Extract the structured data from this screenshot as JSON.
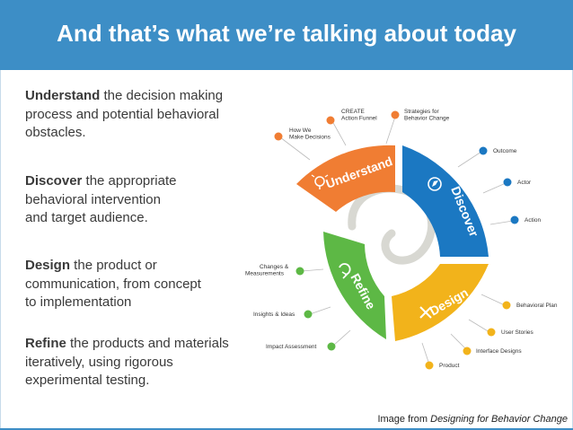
{
  "title": "And that’s what we’re talking about today",
  "steps": [
    {
      "term": "Understand",
      "line1": " the decision making",
      "line2": "process  and potential behavioral",
      "line3": "obstacles."
    },
    {
      "term": "Discover",
      "line1": " the appropriate",
      "line2": "behavioral intervention",
      "line3": "and target audience."
    },
    {
      "term": "Design",
      "line1": " the product or",
      "line2": "communication, from concept",
      "line3": "to implementation"
    },
    {
      "term": "Refine",
      "line1": " the products and materials",
      "line2": "iteratively, using rigorous",
      "line3": "experimental testing."
    }
  ],
  "caption": {
    "prefix": "Image from ",
    "source": "Designing for Behavior Change"
  },
  "diagram": {
    "segments": [
      {
        "label": "Understand",
        "color": "#f07d33",
        "icon": "lightbulb-icon"
      },
      {
        "label": "Discover",
        "color": "#1b78c2",
        "icon": "compass-icon"
      },
      {
        "label": "Design",
        "color": "#f2b31b",
        "icon": "tools-icon"
      },
      {
        "label": "Refine",
        "color": "#5db845",
        "icon": "refresh-icon"
      }
    ],
    "spiral_color": "#d8d8d2",
    "outputs": {
      "understand": [
        {
          "line1": "How We",
          "line2": "Make Decisions"
        },
        {
          "line1": "CREATE",
          "line2": "Action Funnel"
        },
        {
          "line1": "Strategies for",
          "line2": "Behavior Change"
        }
      ],
      "discover": [
        "Outcome",
        "Actor",
        "Action"
      ],
      "design": [
        "Behavioral Plan",
        "User Stories",
        "Interface Designs",
        "Product"
      ],
      "refine": [
        {
          "line1": "Changes &",
          "line2": "Measurements"
        },
        {
          "line1": "Insights & Ideas",
          "line2": ""
        },
        {
          "line1": "Impact Assessment",
          "line2": ""
        }
      ]
    }
  }
}
